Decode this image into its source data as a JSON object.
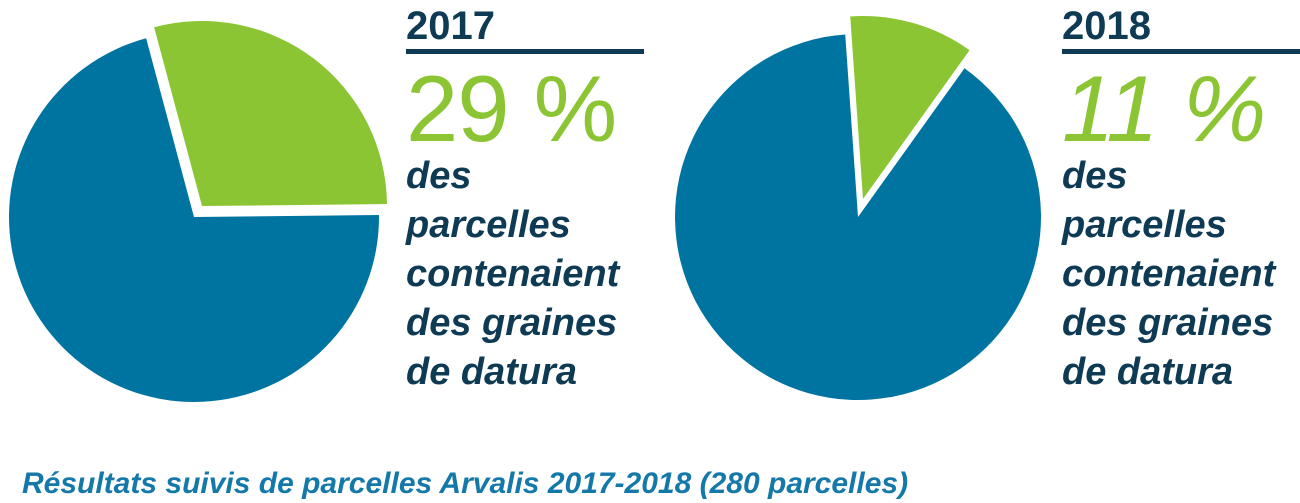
{
  "colors": {
    "green": "#8CC534",
    "blue": "#0074A0",
    "navy": "#0E3A54",
    "caption_blue": "#1478A8"
  },
  "panels": [
    {
      "year": "2017",
      "percent": "29 %",
      "description_lines": [
        "des",
        "parcelles",
        "contenaient",
        "des graines",
        "de datura"
      ]
    },
    {
      "year": "2018",
      "percent": "11 %",
      "description_lines": [
        "des",
        "parcelles",
        "contenaient",
        "des graines",
        "de datura"
      ]
    }
  ],
  "caption": "Résultats suivis de parcelles Arvalis 2017-2018 (280 parcelles)",
  "chart_data": [
    {
      "type": "pie",
      "title": "2017",
      "slices": [
        {
          "label": "des parcelles contenaient des graines de datura",
          "value": 29,
          "color": "#8CC534",
          "exploded": true
        },
        {
          "label": "",
          "value": 71,
          "color": "#0074A0",
          "exploded": false
        }
      ],
      "legend": false,
      "data_label": "29 %"
    },
    {
      "type": "pie",
      "title": "2018",
      "slices": [
        {
          "label": "des parcelles contenaient des graines de datura",
          "value": 11,
          "color": "#8CC534",
          "exploded": true
        },
        {
          "label": "",
          "value": 89,
          "color": "#0074A0",
          "exploded": false
        }
      ],
      "legend": false,
      "data_label": "11 %"
    }
  ]
}
